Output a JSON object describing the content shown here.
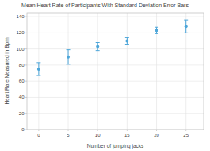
{
  "chart_data": {
    "type": "errorbar",
    "title": "Mean Heart Rate of Participants With Standard Deviation Error Bars",
    "x_label": "Number of jumping jacks",
    "y_label": "Heart Rate Measured in Bpm",
    "x": [
      0,
      5,
      10,
      15,
      20,
      25
    ],
    "values": [
      75,
      90,
      103,
      110,
      123,
      128
    ],
    "errors": [
      8,
      9,
      5,
      4,
      4,
      8
    ],
    "color": "#4da6d9",
    "xlim": [
      -2,
      28
    ],
    "ylim": [
      0,
      145
    ],
    "xticks": [
      0,
      5,
      10,
      15,
      20,
      25
    ],
    "yticks": [
      0,
      20,
      40,
      60,
      80,
      100,
      120,
      140
    ],
    "grid": true
  }
}
